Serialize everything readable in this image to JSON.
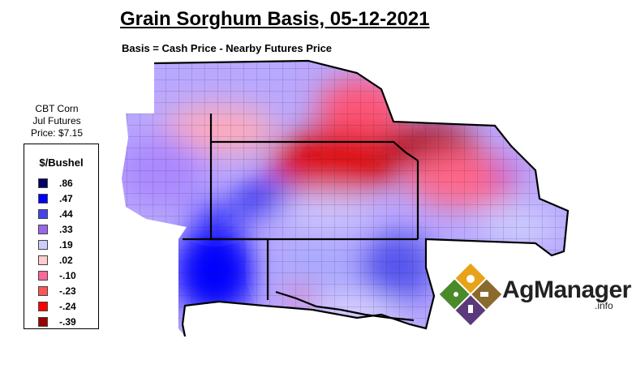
{
  "title": "Grain Sorghum Basis, 05-12-2021",
  "subtitle": "Basis = Cash Price - Nearby Futures Price",
  "futures": {
    "line1": "CBT Corn",
    "line2": "Jul Futures",
    "line3": "Price: $7.15"
  },
  "legend": {
    "title": "$/Bushel",
    "items": [
      {
        "label": ".86",
        "color": "#000066"
      },
      {
        "label": ".47",
        "color": "#0000ff"
      },
      {
        "label": ".44",
        "color": "#4444ee"
      },
      {
        "label": ".33",
        "color": "#9966ee"
      },
      {
        "label": ".19",
        "color": "#ccccff"
      },
      {
        "label": ".02",
        "color": "#ffcccc"
      },
      {
        "label": "-.10",
        "color": "#ff6699"
      },
      {
        "label": "-.23",
        "color": "#ff5555"
      },
      {
        "label": "-.24",
        "color": "#ff0000"
      },
      {
        "label": "-.39",
        "color": "#990000"
      }
    ]
  },
  "logo": {
    "name": "AgManager",
    "suffix": ".info"
  }
}
